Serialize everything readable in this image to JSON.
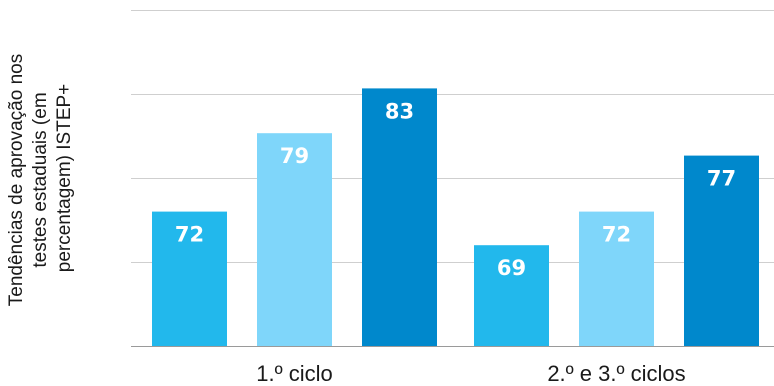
{
  "chart_data": {
    "type": "bar",
    "title": "",
    "ylabel_lines": [
      "Tendências de aprovação nos",
      "testes estaduais (em",
      "percentagem) ISTEP+"
    ],
    "xlabel": "",
    "categories": [
      "1.º ciclo",
      "2.º e 3.º ciclos"
    ],
    "series": [
      {
        "values": [
          72,
          69
        ],
        "color": "#22b8ec"
      },
      {
        "values": [
          79,
          72
        ],
        "color": "#7fd6fa"
      },
      {
        "values": [
          83,
          77
        ],
        "color": "#0088cc"
      }
    ],
    "ylim": [
      60,
      90
    ],
    "grid": true,
    "legend": "none"
  }
}
